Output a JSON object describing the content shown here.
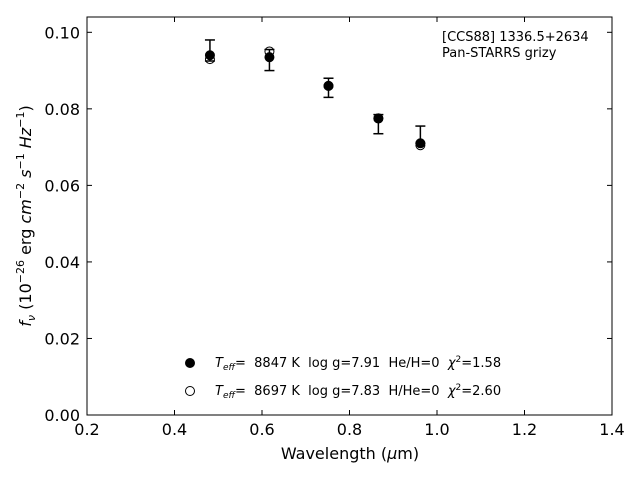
{
  "chart_data": {
    "type": "scatter",
    "xlabel_main": "Wavelength (",
    "xlabel_unit_mu": "μ",
    "xlabel_unit_rest": "m)",
    "ylabel_f": "f",
    "ylabel_nu": "ν",
    "ylabel_open": " (10",
    "ylabel_exp": "−26",
    "ylabel_erg": " erg ",
    "ylabel_cm": "cm",
    "ylabel_cm_exp": "−2",
    "ylabel_s": " s",
    "ylabel_s_exp": "−1",
    "ylabel_hz": " Hz",
    "ylabel_hz_exp": "−1",
    "ylabel_close": ")",
    "xlim": [
      0.2,
      1.4
    ],
    "ylim": [
      0.0,
      0.104
    ],
    "xticks": [
      0.2,
      0.4,
      0.6,
      0.8,
      1.0,
      1.2,
      1.4
    ],
    "xtick_labels": [
      "0.2",
      "0.4",
      "0.6",
      "0.8",
      "1.0",
      "1.2",
      "1.4"
    ],
    "yticks": [
      0.0,
      0.02,
      0.04,
      0.06,
      0.08,
      0.1
    ],
    "ytick_labels": [
      "0.00",
      "0.02",
      "0.04",
      "0.06",
      "0.08",
      "0.10"
    ],
    "grid": false,
    "annotation_line1": "[CCS88] 1336.5+2634",
    "annotation_line2": "Pan-STARRS grizy",
    "observed": {
      "x": [
        0.481,
        0.617,
        0.752,
        0.866,
        0.962
      ],
      "y": [
        0.095,
        0.093,
        0.0855,
        0.077,
        0.0725
      ],
      "yerr_low": [
        0.0025,
        0.003,
        0.0025,
        0.0035,
        0.0015
      ],
      "yerr_high": [
        0.003,
        0.0025,
        0.0025,
        0.0015,
        0.003
      ]
    },
    "series": [
      {
        "marker": "filled-circle",
        "x": [
          0.481,
          0.617,
          0.752,
          0.866,
          0.962
        ],
        "y": [
          0.094,
          0.0935,
          0.086,
          0.0775,
          0.071
        ],
        "legend_teff_label": "T",
        "legend_teff_sub": "eff",
        "legend_text": "=  8847 K  log g=7.91  He/H=0  ",
        "legend_chi": "χ",
        "legend_chi_exp": "2",
        "legend_chi_val": "=1.58"
      },
      {
        "marker": "open-circle",
        "x": [
          0.481,
          0.617,
          0.752,
          0.866,
          0.962
        ],
        "y": [
          0.093,
          0.095,
          0.086,
          0.0775,
          0.0705
        ],
        "legend_teff_label": "T",
        "legend_teff_sub": "eff",
        "legend_text": "=  8697 K  log g=7.83  H/He=0  ",
        "legend_chi": "χ",
        "legend_chi_exp": "2",
        "legend_chi_val": "=2.60"
      }
    ],
    "legend_placement": "lower-center",
    "colors": {
      "marker": "#000000",
      "axes": "#000000",
      "background": "#ffffff"
    }
  }
}
